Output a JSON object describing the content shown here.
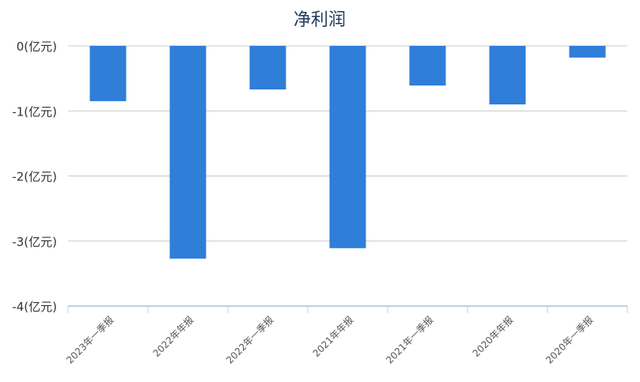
{
  "chart_data": {
    "type": "bar",
    "title": "净利润",
    "categories": [
      "2023年一季报",
      "2022年年报",
      "2022年一季报",
      "2021年年报",
      "2021年一季报",
      "2020年年报",
      "2020年一季报"
    ],
    "values": [
      -0.85,
      -3.27,
      -0.67,
      -3.11,
      -0.61,
      -0.9,
      -0.18
    ],
    "unit": "亿元",
    "ylim": [
      -4,
      0
    ],
    "yticks": [
      0,
      -1,
      -2,
      -3,
      -4
    ],
    "ytick_labels": [
      "0(亿元)",
      "-1(亿元)",
      "-2(亿元)",
      "-3(亿元)",
      "-4(亿元)"
    ],
    "grid": true,
    "bar_color": "#2f7ed8",
    "xlabel": "",
    "ylabel": ""
  }
}
